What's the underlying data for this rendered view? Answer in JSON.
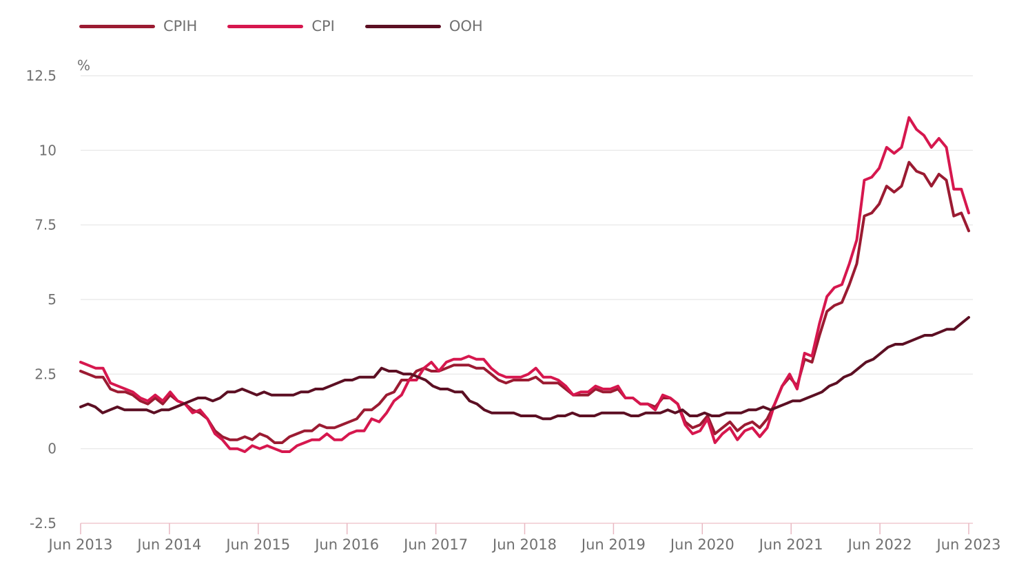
{
  "chart_data": {
    "type": "line",
    "ylabel": "%",
    "ylim": [
      -2.5,
      12.5
    ],
    "yticks": [
      "12.5",
      "10",
      "7.5",
      "5",
      "2.5",
      "0",
      "-2.5"
    ],
    "ytick_values": [
      12.5,
      10,
      7.5,
      5,
      2.5,
      0,
      -2.5
    ],
    "xticks": [
      "Jun 2013",
      "Jun 2014",
      "Jun 2015",
      "Jun 2016",
      "Jun 2017",
      "Jun 2018",
      "Jun 2019",
      "Jun 2020",
      "Jun 2021",
      "Jun 2022",
      "Jun 2023"
    ],
    "x_start": "2013-06",
    "x_end": "2023-06",
    "legend_position": "top-left",
    "grid": true,
    "series": [
      {
        "name": "CPIH",
        "color": "#9b1b32",
        "values": [
          2.6,
          2.5,
          2.4,
          2.4,
          2.0,
          1.9,
          1.9,
          1.8,
          1.6,
          1.5,
          1.7,
          1.5,
          1.8,
          1.6,
          1.5,
          1.3,
          1.2,
          1.0,
          0.6,
          0.4,
          0.3,
          0.3,
          0.4,
          0.3,
          0.5,
          0.4,
          0.2,
          0.2,
          0.4,
          0.5,
          0.6,
          0.6,
          0.8,
          0.7,
          0.7,
          0.8,
          0.9,
          1.0,
          1.3,
          1.3,
          1.5,
          1.8,
          1.9,
          2.3,
          2.3,
          2.6,
          2.7,
          2.6,
          2.6,
          2.7,
          2.8,
          2.8,
          2.8,
          2.7,
          2.7,
          2.5,
          2.3,
          2.2,
          2.3,
          2.3,
          2.3,
          2.4,
          2.2,
          2.2,
          2.2,
          2.0,
          1.8,
          1.8,
          1.8,
          2.0,
          1.9,
          1.9,
          2.0,
          1.7,
          1.7,
          1.5,
          1.5,
          1.4,
          1.7,
          1.7,
          1.5,
          0.9,
          0.7,
          0.8,
          1.1,
          0.5,
          0.7,
          0.9,
          0.6,
          0.8,
          0.9,
          0.7,
          1.0,
          1.5,
          2.1,
          2.4,
          2.1,
          3.0,
          2.9,
          3.8,
          4.6,
          4.8,
          4.9,
          5.5,
          6.2,
          7.8,
          7.9,
          8.2,
          8.8,
          8.6,
          8.8,
          9.6,
          9.3,
          9.2,
          8.8,
          9.2,
          9.0,
          7.8,
          7.9,
          7.3
        ]
      },
      {
        "name": "CPI",
        "color": "#d6174e",
        "values": [
          2.9,
          2.8,
          2.7,
          2.7,
          2.2,
          2.1,
          2.0,
          1.9,
          1.7,
          1.6,
          1.8,
          1.6,
          1.9,
          1.6,
          1.5,
          1.2,
          1.3,
          1.0,
          0.5,
          0.3,
          0.0,
          0.0,
          -0.1,
          0.1,
          0.0,
          0.1,
          0.0,
          -0.1,
          -0.1,
          0.1,
          0.2,
          0.3,
          0.3,
          0.5,
          0.3,
          0.3,
          0.5,
          0.6,
          0.6,
          1.0,
          0.9,
          1.2,
          1.6,
          1.8,
          2.3,
          2.3,
          2.7,
          2.9,
          2.6,
          2.9,
          3.0,
          3.0,
          3.1,
          3.0,
          3.0,
          2.7,
          2.5,
          2.4,
          2.4,
          2.4,
          2.5,
          2.7,
          2.4,
          2.4,
          2.3,
          2.1,
          1.8,
          1.9,
          1.9,
          2.1,
          2.0,
          2.0,
          2.1,
          1.7,
          1.7,
          1.5,
          1.5,
          1.3,
          1.8,
          1.7,
          1.5,
          0.8,
          0.5,
          0.6,
          1.0,
          0.2,
          0.5,
          0.7,
          0.3,
          0.6,
          0.7,
          0.4,
          0.7,
          1.5,
          2.1,
          2.5,
          2.0,
          3.2,
          3.1,
          4.2,
          5.1,
          5.4,
          5.5,
          6.2,
          7.0,
          9.0,
          9.1,
          9.4,
          10.1,
          9.9,
          10.1,
          11.1,
          10.7,
          10.5,
          10.1,
          10.4,
          10.1,
          8.7,
          8.7,
          7.9
        ]
      },
      {
        "name": "OOH",
        "color": "#5c0f23",
        "values": [
          1.4,
          1.5,
          1.4,
          1.2,
          1.3,
          1.4,
          1.3,
          1.3,
          1.3,
          1.3,
          1.2,
          1.3,
          1.3,
          1.4,
          1.5,
          1.6,
          1.7,
          1.7,
          1.6,
          1.7,
          1.9,
          1.9,
          2.0,
          1.9,
          1.8,
          1.9,
          1.8,
          1.8,
          1.8,
          1.8,
          1.9,
          1.9,
          2.0,
          2.0,
          2.1,
          2.2,
          2.3,
          2.3,
          2.4,
          2.4,
          2.4,
          2.7,
          2.6,
          2.6,
          2.5,
          2.5,
          2.4,
          2.3,
          2.1,
          2.0,
          2.0,
          1.9,
          1.9,
          1.6,
          1.5,
          1.3,
          1.2,
          1.2,
          1.2,
          1.2,
          1.1,
          1.1,
          1.1,
          1.0,
          1.0,
          1.1,
          1.1,
          1.2,
          1.1,
          1.1,
          1.1,
          1.2,
          1.2,
          1.2,
          1.2,
          1.1,
          1.1,
          1.2,
          1.2,
          1.2,
          1.3,
          1.2,
          1.3,
          1.1,
          1.1,
          1.2,
          1.1,
          1.1,
          1.2,
          1.2,
          1.2,
          1.3,
          1.3,
          1.4,
          1.3,
          1.4,
          1.5,
          1.6,
          1.6,
          1.7,
          1.8,
          1.9,
          2.1,
          2.2,
          2.4,
          2.5,
          2.7,
          2.9,
          3.0,
          3.2,
          3.4,
          3.5,
          3.5,
          3.6,
          3.7,
          3.8,
          3.8,
          3.9,
          4.0,
          4.0,
          4.2,
          4.4
        ]
      }
    ]
  }
}
